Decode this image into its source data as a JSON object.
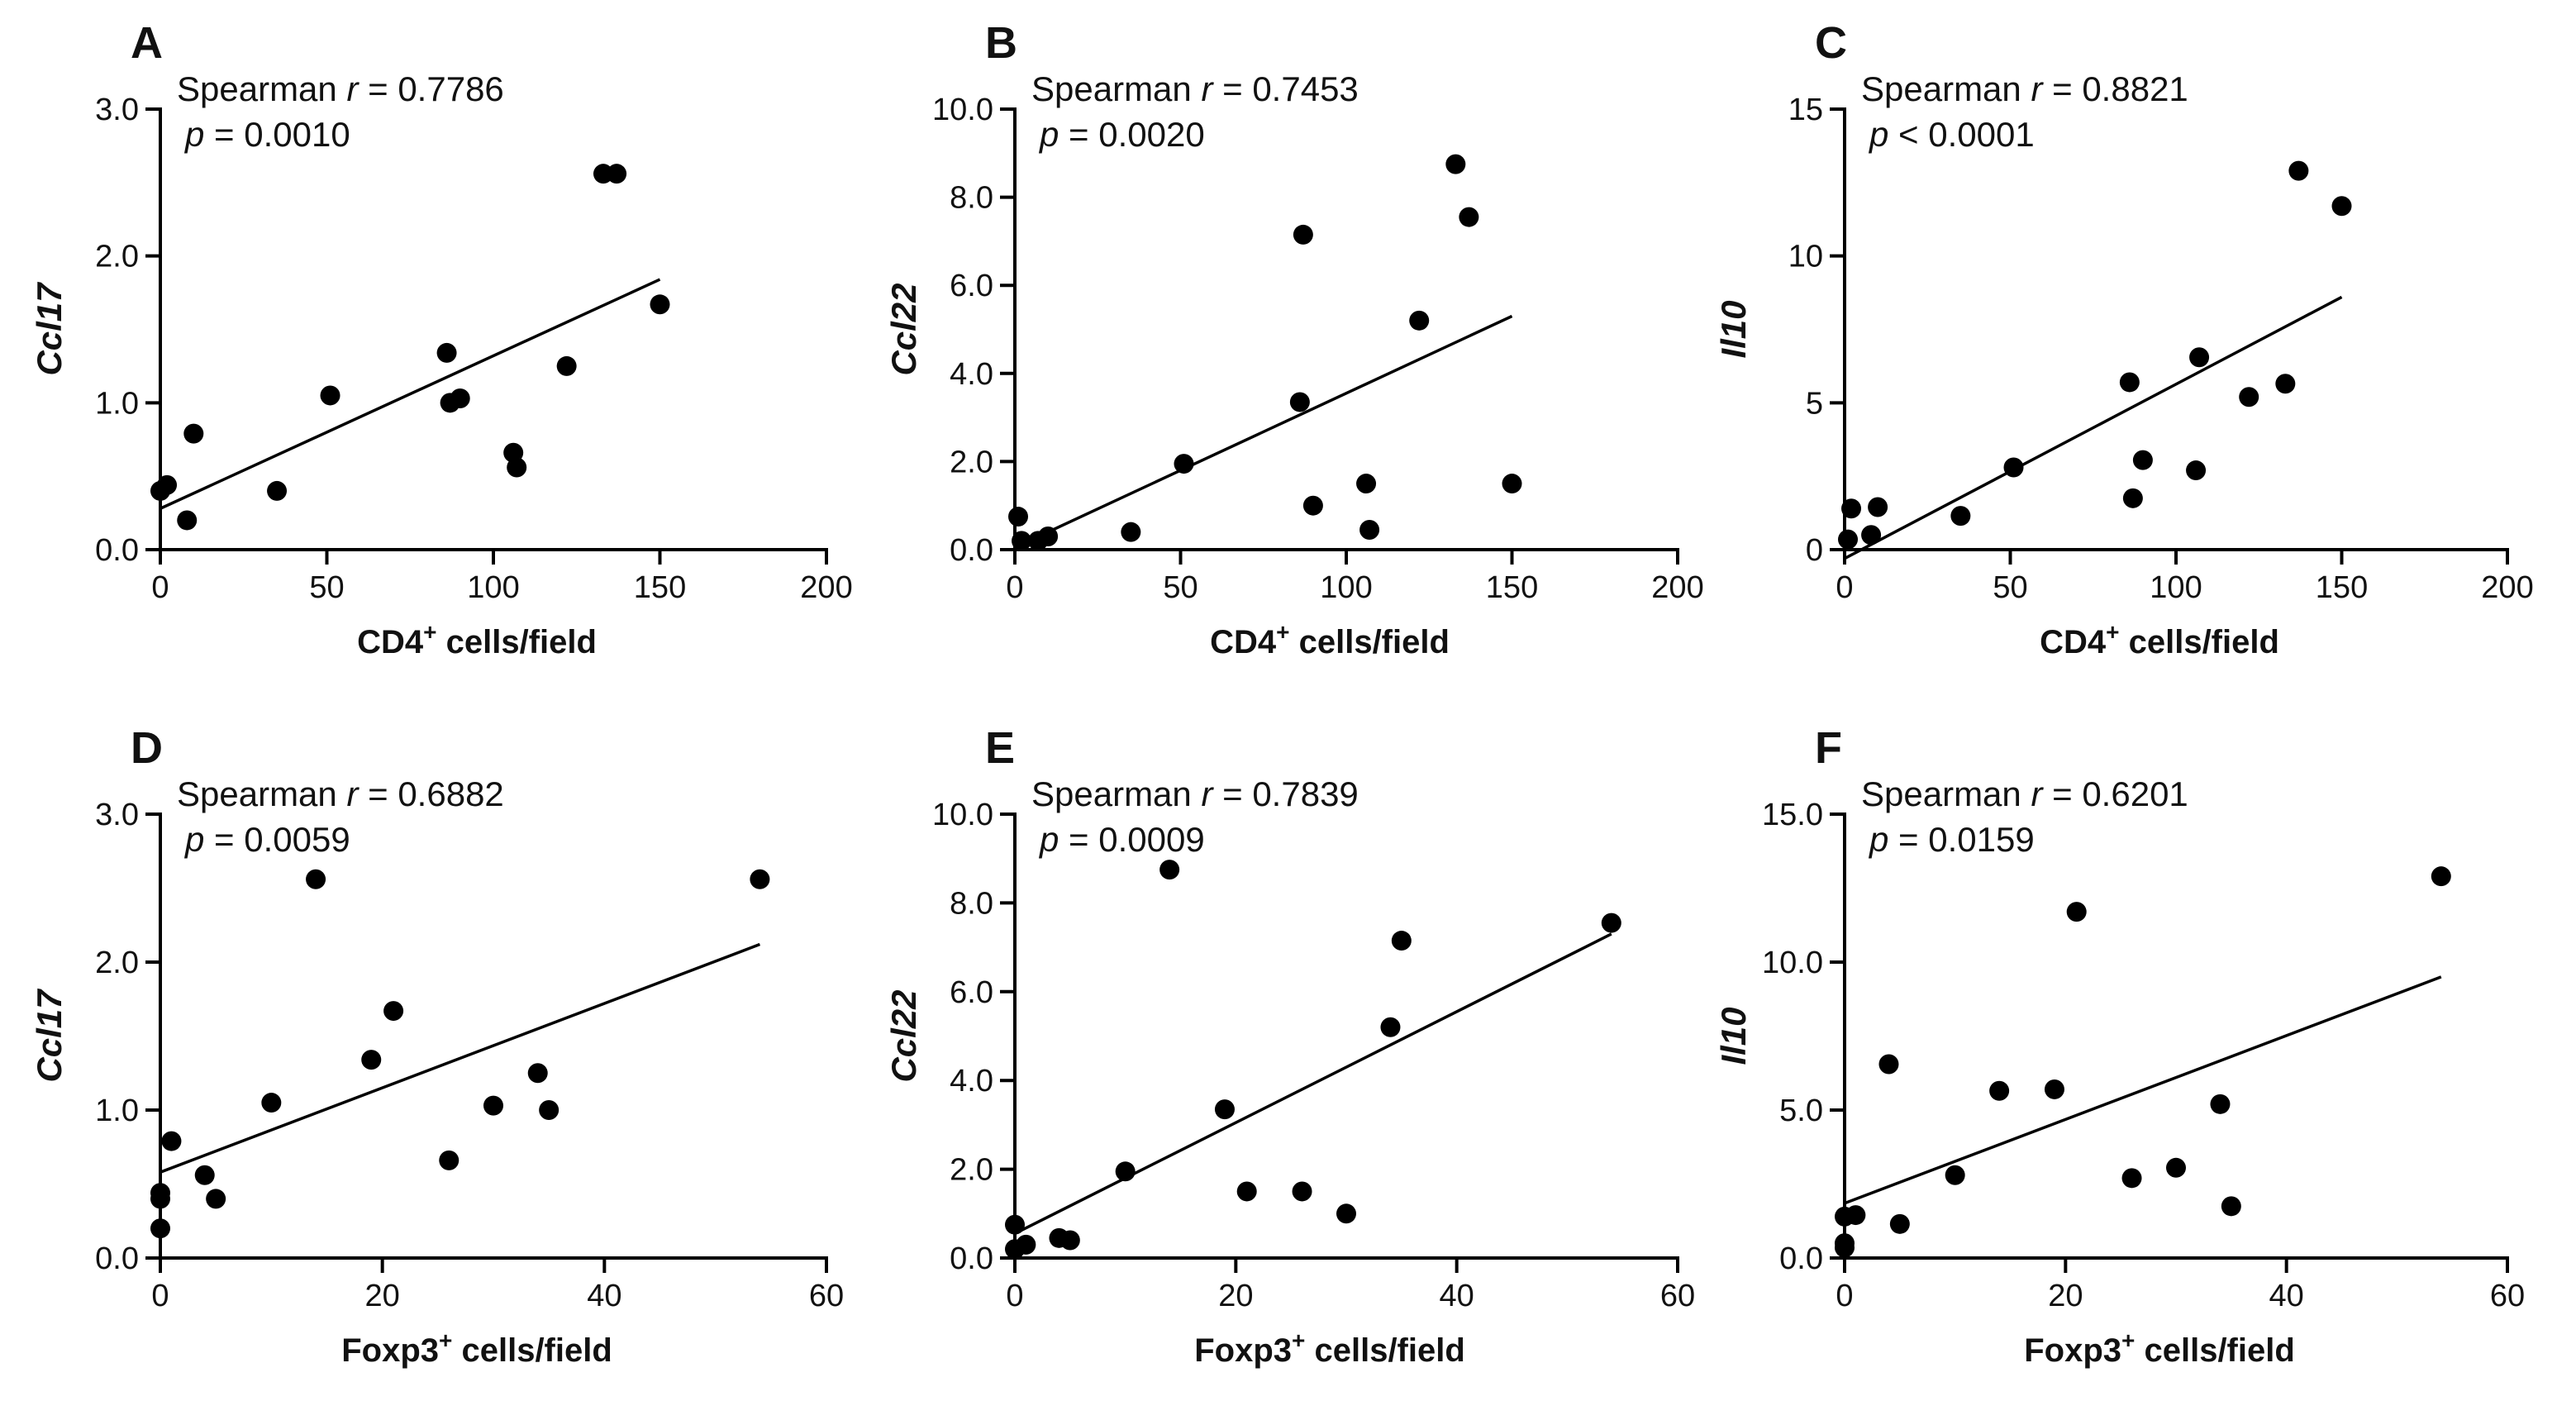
{
  "chart_data": [
    {
      "type": "scatter",
      "panel_label": "A",
      "stat_line1_prefix": "Spearman ",
      "stat_line1_var": "r",
      "stat_line1_value": " = 0.7786",
      "stat_line2_var": "p",
      "stat_line2_value": " = 0.0010",
      "xlabel_main": "CD4",
      "xlabel_sup": "+",
      "xlabel_tail": " cells/field",
      "ylabel": "Ccl17",
      "xlim": [
        0,
        200
      ],
      "ylim": [
        0,
        3
      ],
      "xticks": [
        0,
        50,
        100,
        150,
        200
      ],
      "xtick_labels": [
        "0",
        "50",
        "100",
        "150",
        "200"
      ],
      "yticks": [
        0,
        1,
        2,
        3
      ],
      "ytick_labels": [
        "0.0",
        "1.0",
        "2.0",
        "3.0"
      ],
      "points": [
        [
          0,
          0.4
        ],
        [
          2,
          0.44
        ],
        [
          8,
          0.2
        ],
        [
          10,
          0.79
        ],
        [
          35,
          0.4
        ],
        [
          51,
          1.05
        ],
        [
          86,
          1.34
        ],
        [
          87,
          1.0
        ],
        [
          90,
          1.03
        ],
        [
          106,
          0.66
        ],
        [
          107,
          0.56
        ],
        [
          122,
          1.25
        ],
        [
          133,
          2.56
        ],
        [
          137,
          2.56
        ],
        [
          150,
          1.67
        ]
      ],
      "fit_line": [
        [
          0,
          0.28
        ],
        [
          150,
          1.84
        ]
      ]
    },
    {
      "type": "scatter",
      "panel_label": "B",
      "stat_line1_prefix": "Spearman ",
      "stat_line1_var": "r",
      "stat_line1_value": " = 0.7453",
      "stat_line2_var": "p",
      "stat_line2_value": " = 0.0020",
      "xlabel_main": "CD4",
      "xlabel_sup": "+",
      "xlabel_tail": " cells/field",
      "ylabel": "Ccl22",
      "xlim": [
        0,
        200
      ],
      "ylim": [
        0,
        10
      ],
      "xticks": [
        0,
        50,
        100,
        150,
        200
      ],
      "xtick_labels": [
        "0",
        "50",
        "100",
        "150",
        "200"
      ],
      "yticks": [
        0,
        2,
        4,
        6,
        8,
        10
      ],
      "ytick_labels": [
        "0.0",
        "2.0",
        "4.0",
        "6.0",
        "8.0",
        "10.0"
      ],
      "points": [
        [
          1,
          0.75
        ],
        [
          2,
          0.2
        ],
        [
          7,
          0.2
        ],
        [
          10,
          0.3
        ],
        [
          35,
          0.4
        ],
        [
          51,
          1.95
        ],
        [
          86,
          3.35
        ],
        [
          87,
          7.15
        ],
        [
          90,
          1.0
        ],
        [
          106,
          1.5
        ],
        [
          107,
          0.45
        ],
        [
          122,
          5.2
        ],
        [
          133,
          8.75
        ],
        [
          137,
          7.55
        ],
        [
          150,
          1.5
        ]
      ],
      "fit_line": [
        [
          0,
          0.05
        ],
        [
          150,
          5.3
        ]
      ]
    },
    {
      "type": "scatter",
      "panel_label": "C",
      "stat_line1_prefix": "Spearman ",
      "stat_line1_var": "r",
      "stat_line1_value": " = 0.8821",
      "stat_line2_var": "p",
      "stat_line2_value": " < 0.0001",
      "xlabel_main": "CD4",
      "xlabel_sup": "+",
      "xlabel_tail": " cells/field",
      "ylabel": "Il10",
      "xlim": [
        0,
        200
      ],
      "ylim": [
        0,
        15
      ],
      "xticks": [
        0,
        50,
        100,
        150,
        200
      ],
      "xtick_labels": [
        "0",
        "50",
        "100",
        "150",
        "200"
      ],
      "yticks": [
        0,
        5,
        10,
        15
      ],
      "ytick_labels": [
        "0",
        "5",
        "10",
        "15"
      ],
      "points": [
        [
          1,
          0.35
        ],
        [
          2,
          1.4
        ],
        [
          8,
          0.5
        ],
        [
          10,
          1.45
        ],
        [
          35,
          1.15
        ],
        [
          51,
          2.8
        ],
        [
          86,
          5.7
        ],
        [
          87,
          1.75
        ],
        [
          90,
          3.05
        ],
        [
          106,
          2.7
        ],
        [
          107,
          6.55
        ],
        [
          122,
          5.2
        ],
        [
          133,
          5.65
        ],
        [
          137,
          12.9
        ],
        [
          150,
          11.7
        ]
      ],
      "fit_line": [
        [
          0,
          -0.3
        ],
        [
          150,
          8.6
        ]
      ]
    },
    {
      "type": "scatter",
      "panel_label": "D",
      "stat_line1_prefix": "Spearman ",
      "stat_line1_var": "r",
      "stat_line1_value": " = 0.6882",
      "stat_line2_var": "p",
      "stat_line2_value": " = 0.0059",
      "xlabel_main": "Foxp3",
      "xlabel_sup": "+",
      "xlabel_tail": " cells/field",
      "ylabel": "Ccl17",
      "xlim": [
        0,
        60
      ],
      "ylim": [
        0,
        3
      ],
      "xticks": [
        0,
        20,
        40,
        60
      ],
      "xtick_labels": [
        "0",
        "20",
        "40",
        "60"
      ],
      "yticks": [
        0,
        1,
        2,
        3
      ],
      "ytick_labels": [
        "0.0",
        "1.0",
        "2.0",
        "3.0"
      ],
      "points": [
        [
          0,
          0.2
        ],
        [
          0,
          0.4
        ],
        [
          0,
          0.44
        ],
        [
          1,
          0.79
        ],
        [
          4,
          0.56
        ],
        [
          5,
          0.4
        ],
        [
          10,
          1.05
        ],
        [
          14,
          2.56
        ],
        [
          19,
          1.34
        ],
        [
          21,
          1.67
        ],
        [
          26,
          0.66
        ],
        [
          30,
          1.03
        ],
        [
          34,
          1.25
        ],
        [
          35,
          1.0
        ],
        [
          54,
          2.56
        ]
      ],
      "fit_line": [
        [
          0,
          0.58
        ],
        [
          54,
          2.12
        ]
      ]
    },
    {
      "type": "scatter",
      "panel_label": "E",
      "stat_line1_prefix": "Spearman ",
      "stat_line1_var": "r",
      "stat_line1_value": " = 0.7839",
      "stat_line2_var": "p",
      "stat_line2_value": " = 0.0009",
      "xlabel_main": "Foxp3",
      "xlabel_sup": "+",
      "xlabel_tail": " cells/field",
      "ylabel": "Ccl22",
      "xlim": [
        0,
        60
      ],
      "ylim": [
        0,
        10
      ],
      "xticks": [
        0,
        20,
        40,
        60
      ],
      "xtick_labels": [
        "0",
        "20",
        "40",
        "60"
      ],
      "yticks": [
        0,
        2,
        4,
        6,
        8,
        10
      ],
      "ytick_labels": [
        "0.0",
        "2.0",
        "4.0",
        "6.0",
        "8.0",
        "10.0"
      ],
      "points": [
        [
          0,
          0.75
        ],
        [
          0,
          0.2
        ],
        [
          1,
          0.3
        ],
        [
          4,
          0.45
        ],
        [
          5,
          0.4
        ],
        [
          10,
          1.95
        ],
        [
          14,
          8.75
        ],
        [
          19,
          3.35
        ],
        [
          21,
          1.5
        ],
        [
          26,
          1.5
        ],
        [
          30,
          1.0
        ],
        [
          34,
          5.2
        ],
        [
          35,
          7.15
        ],
        [
          54,
          7.55
        ]
      ],
      "fit_line": [
        [
          0,
          0.55
        ],
        [
          54,
          7.3
        ]
      ]
    },
    {
      "type": "scatter",
      "panel_label": "F",
      "stat_line1_prefix": "Spearman ",
      "stat_line1_var": "r",
      "stat_line1_value": " = 0.6201",
      "stat_line2_var": "p",
      "stat_line2_value": " = 0.0159",
      "xlabel_main": "Foxp3",
      "xlabel_sup": "+",
      "xlabel_tail": " cells/field",
      "ylabel": "Il10",
      "xlim": [
        0,
        60
      ],
      "ylim": [
        0,
        15
      ],
      "xticks": [
        0,
        20,
        40,
        60
      ],
      "xtick_labels": [
        "0",
        "20",
        "40",
        "60"
      ],
      "yticks": [
        0,
        5,
        10,
        15
      ],
      "ytick_labels": [
        "0.0",
        "5.0",
        "10.0",
        "15.0"
      ],
      "points": [
        [
          0,
          0.35
        ],
        [
          0,
          0.5
        ],
        [
          0,
          1.4
        ],
        [
          1,
          1.45
        ],
        [
          4,
          6.55
        ],
        [
          5,
          1.15
        ],
        [
          10,
          2.8
        ],
        [
          14,
          5.65
        ],
        [
          19,
          5.7
        ],
        [
          21,
          11.7
        ],
        [
          26,
          2.7
        ],
        [
          30,
          3.05
        ],
        [
          34,
          5.2
        ],
        [
          35,
          1.75
        ],
        [
          54,
          12.9
        ]
      ],
      "fit_line": [
        [
          0,
          1.85
        ],
        [
          54,
          9.5
        ]
      ]
    }
  ]
}
